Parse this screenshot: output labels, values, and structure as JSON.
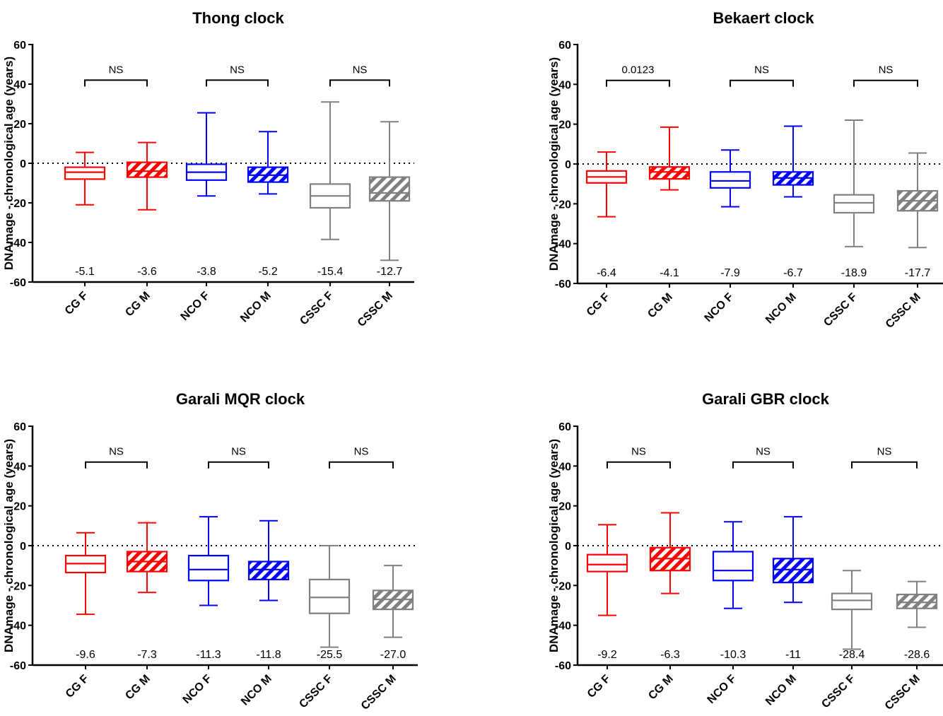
{
  "chart_data": [
    {
      "type": "box",
      "title": "Thong clock",
      "ylabel": "DNAmage - chronological age (years)",
      "ylim": [
        -60,
        60
      ],
      "yticks": [
        -60,
        -40,
        -20,
        0,
        20,
        40,
        60
      ],
      "reference_line": 0,
      "categories": [
        "CG F",
        "CG M",
        "NCO F",
        "NCO M",
        "CSSC F",
        "CSSC M"
      ],
      "boxes": [
        {
          "min": -21,
          "q1": -8,
          "median": -4.5,
          "q3": -2,
          "max": 5.5
        },
        {
          "min": -23.5,
          "q1": -7,
          "median": -4,
          "q3": 0.5,
          "max": 10.5
        },
        {
          "min": -16.5,
          "q1": -8.5,
          "median": -4.5,
          "q3": -0.5,
          "max": 25.5
        },
        {
          "min": -15.5,
          "q1": -9.5,
          "median": -6,
          "q3": -2,
          "max": 16
        },
        {
          "min": -38.5,
          "q1": -22.5,
          "median": -16.5,
          "q3": -10.5,
          "max": 31
        },
        {
          "min": -49,
          "q1": -19,
          "median": -15,
          "q3": -7,
          "max": 21
        }
      ],
      "annotations": [
        "-5.1",
        "-3.6",
        "-3.8",
        "-5.2",
        "-15.4",
        "-12.7"
      ],
      "comparisons": [
        {
          "from": 0,
          "to": 1,
          "label": "NS"
        },
        {
          "from": 2,
          "to": 3,
          "label": "NS"
        },
        {
          "from": 4,
          "to": 5,
          "label": "NS"
        }
      ],
      "colors": [
        "#ff0000",
        "#ff0000",
        "#0000ff",
        "#0000ff",
        "#808080",
        "#808080"
      ],
      "hatched": [
        false,
        true,
        false,
        true,
        false,
        true
      ]
    },
    {
      "type": "box",
      "title": "Bekaert clock",
      "ylabel": "DNAmage - chronological age (years)",
      "ylim": [
        -60,
        60
      ],
      "yticks": [
        -60,
        -40,
        -20,
        0,
        20,
        40,
        60
      ],
      "reference_line": 0,
      "categories": [
        "CG F",
        "CG M",
        "NCO F",
        "NCO M",
        "CSSC F",
        "CSSC M"
      ],
      "boxes": [
        {
          "min": -26.5,
          "q1": -9.5,
          "median": -6.5,
          "q3": -3.5,
          "max": 6
        },
        {
          "min": -13,
          "q1": -7.5,
          "median": -4,
          "q3": -1.5,
          "max": 18.5
        },
        {
          "min": -21.5,
          "q1": -12,
          "median": -8.5,
          "q3": -4,
          "max": 7
        },
        {
          "min": -16.5,
          "q1": -10.5,
          "median": -7,
          "q3": -4,
          "max": 19
        },
        {
          "min": -41.5,
          "q1": -24.5,
          "median": -19.5,
          "q3": -15.5,
          "max": 22
        },
        {
          "min": -42,
          "q1": -23.5,
          "median": -18.5,
          "q3": -13.5,
          "max": 5.5
        }
      ],
      "annotations": [
        "-6.4",
        "-4.1",
        "-7.9",
        "-6.7",
        "-18.9",
        "-17.7"
      ],
      "comparisons": [
        {
          "from": 0,
          "to": 1,
          "label": "0.0123"
        },
        {
          "from": 2,
          "to": 3,
          "label": "NS"
        },
        {
          "from": 4,
          "to": 5,
          "label": "NS"
        }
      ],
      "colors": [
        "#ff0000",
        "#ff0000",
        "#0000ff",
        "#0000ff",
        "#808080",
        "#808080"
      ],
      "hatched": [
        false,
        true,
        false,
        true,
        false,
        true
      ]
    },
    {
      "type": "box",
      "title": "Garali MQR clock",
      "ylabel": "DNAmage - chronological age (years)",
      "ylim": [
        -60,
        60
      ],
      "yticks": [
        -60,
        -40,
        -20,
        0,
        20,
        40,
        60
      ],
      "reference_line": 0,
      "categories": [
        "CG F",
        "CG M",
        "NCO F",
        "NCO M",
        "CSSC F",
        "CSSC M"
      ],
      "boxes": [
        {
          "min": -34.5,
          "q1": -13.5,
          "median": -9,
          "q3": -5,
          "max": 6.5
        },
        {
          "min": -23.5,
          "q1": -13,
          "median": -8,
          "q3": -3,
          "max": 11.5
        },
        {
          "min": -30,
          "q1": -17.5,
          "median": -12,
          "q3": -5,
          "max": 14.5
        },
        {
          "min": -27.5,
          "q1": -17,
          "median": -12,
          "q3": -8,
          "max": 12.5
        },
        {
          "min": -51,
          "q1": -34,
          "median": -26,
          "q3": -17,
          "max": 0
        },
        {
          "min": -46,
          "q1": -32,
          "median": -27,
          "q3": -22.5,
          "max": -10
        }
      ],
      "annotations": [
        "-9.6",
        "-7.3",
        "-11.3",
        "-11.8",
        "-25.5",
        "-27.0"
      ],
      "comparisons": [
        {
          "from": 0,
          "to": 1,
          "label": "NS"
        },
        {
          "from": 2,
          "to": 3,
          "label": "NS"
        },
        {
          "from": 4,
          "to": 5,
          "label": "NS"
        }
      ],
      "colors": [
        "#ff0000",
        "#ff0000",
        "#0000ff",
        "#0000ff",
        "#808080",
        "#808080"
      ],
      "hatched": [
        false,
        true,
        false,
        true,
        false,
        true
      ]
    },
    {
      "type": "box",
      "title": "Garali GBR clock",
      "ylabel": "DNAmage - chronological age (years)",
      "ylim": [
        -60,
        60
      ],
      "yticks": [
        -60,
        -40,
        -20,
        0,
        20,
        40,
        60
      ],
      "reference_line": 0,
      "categories": [
        "CG F",
        "CG M",
        "NCO F",
        "NCO M",
        "CSSC F",
        "CSSC M"
      ],
      "boxes": [
        {
          "min": -35,
          "q1": -13,
          "median": -9.5,
          "q3": -4.5,
          "max": 10.5
        },
        {
          "min": -24,
          "q1": -12.5,
          "median": -6.5,
          "q3": -1,
          "max": 16.5
        },
        {
          "min": -31.5,
          "q1": -17.5,
          "median": -12.5,
          "q3": -3,
          "max": 12
        },
        {
          "min": -28.5,
          "q1": -18.5,
          "median": -12,
          "q3": -6.5,
          "max": 14.5
        },
        {
          "min": -52,
          "q1": -32,
          "median": -27.5,
          "q3": -24,
          "max": -12.5
        },
        {
          "min": -41,
          "q1": -31.5,
          "median": -28.5,
          "q3": -24.5,
          "max": -18
        }
      ],
      "annotations": [
        "-9.2",
        "-6.3",
        "-10.3",
        "-11",
        "-28.4",
        "-28.6"
      ],
      "comparisons": [
        {
          "from": 0,
          "to": 1,
          "label": "NS"
        },
        {
          "from": 2,
          "to": 3,
          "label": "NS"
        },
        {
          "from": 4,
          "to": 5,
          "label": "NS"
        }
      ],
      "colors": [
        "#ff0000",
        "#ff0000",
        "#0000ff",
        "#0000ff",
        "#808080",
        "#808080"
      ],
      "hatched": [
        false,
        true,
        false,
        true,
        false,
        true
      ]
    }
  ]
}
